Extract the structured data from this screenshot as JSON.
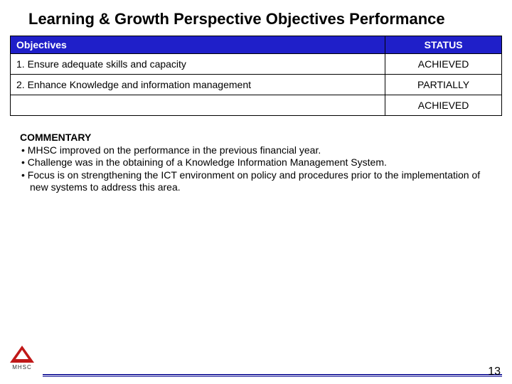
{
  "title": "Learning & Growth  Perspective Objectives Performance",
  "table": {
    "headers": {
      "objectives": "Objectives",
      "status": "STATUS"
    },
    "rows": [
      {
        "objective": "1. Ensure adequate skills and capacity",
        "status": "ACHIEVED"
      },
      {
        "objective": "2. Enhance Knowledge and information management",
        "status": "PARTIALLY"
      }
    ],
    "extra_status": "ACHIEVED"
  },
  "commentary": {
    "heading": "COMMENTARY",
    "bullets": [
      "MHSC improved on the performance in the previous financial year.",
      "Challenge was in the obtaining of a Knowledge Information Management System.",
      "Focus is on strengthening the ICT environment on policy and procedures prior to the implementation of new systems to address this area."
    ]
  },
  "footer": {
    "page_number": "13",
    "logo_text": "MHSC"
  },
  "colors": {
    "header_bg": "#1f1fc9",
    "header_text": "#ffffff",
    "border": "#000000",
    "rule": "#2a2aa0",
    "logo_tri": "#c01818"
  }
}
